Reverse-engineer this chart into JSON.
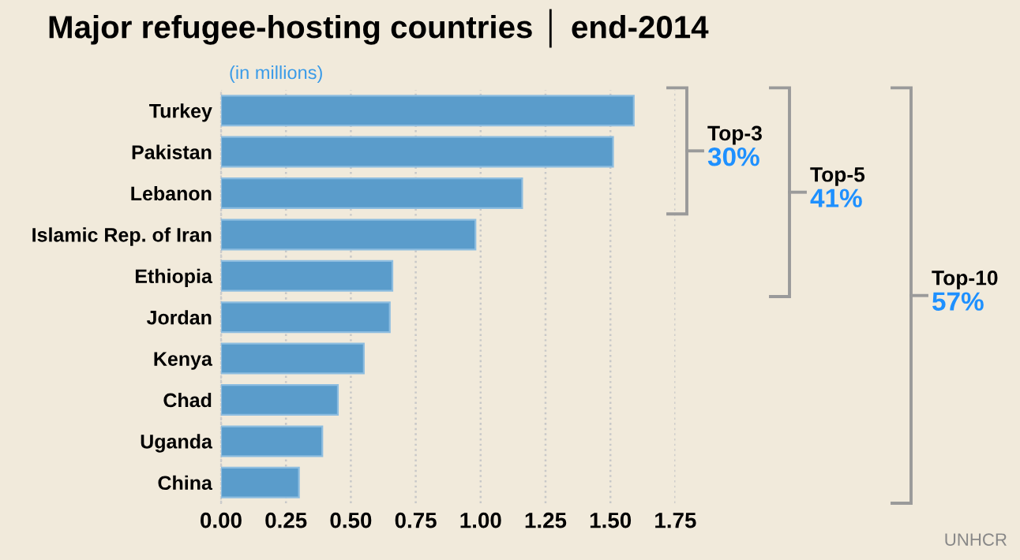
{
  "chart_data": {
    "type": "bar",
    "orientation": "horizontal",
    "title": "Major refugee-hosting countries │ end-2014",
    "subtitle": "(in millions)",
    "categories": [
      "Turkey",
      "Pakistan",
      "Lebanon",
      "Islamic Rep. of Iran",
      "Ethiopia",
      "Jordan",
      "Kenya",
      "Chad",
      "Uganda",
      "China"
    ],
    "values": [
      1.59,
      1.51,
      1.16,
      0.98,
      0.66,
      0.65,
      0.55,
      0.45,
      0.39,
      0.3
    ],
    "color": "#5a9ccb",
    "xlim": [
      0,
      1.75
    ],
    "xticks": [
      {
        "value": 0,
        "label": "0.00"
      },
      {
        "value": 0.25,
        "label": "0.25"
      },
      {
        "value": 0.5,
        "label": "0.50"
      },
      {
        "value": 0.75,
        "label": "0.75"
      },
      {
        "value": 1.0,
        "label": "1.00"
      },
      {
        "value": 1.25,
        "label": "1.25"
      },
      {
        "value": 1.5,
        "label": "1.50"
      },
      {
        "value": 1.75,
        "label": "1.75"
      }
    ],
    "grid": "x",
    "annotations": [
      "Top-3",
      "30%",
      "Top-5",
      "41%",
      "Top-10",
      "57%",
      "UNHCR"
    ]
  }
}
